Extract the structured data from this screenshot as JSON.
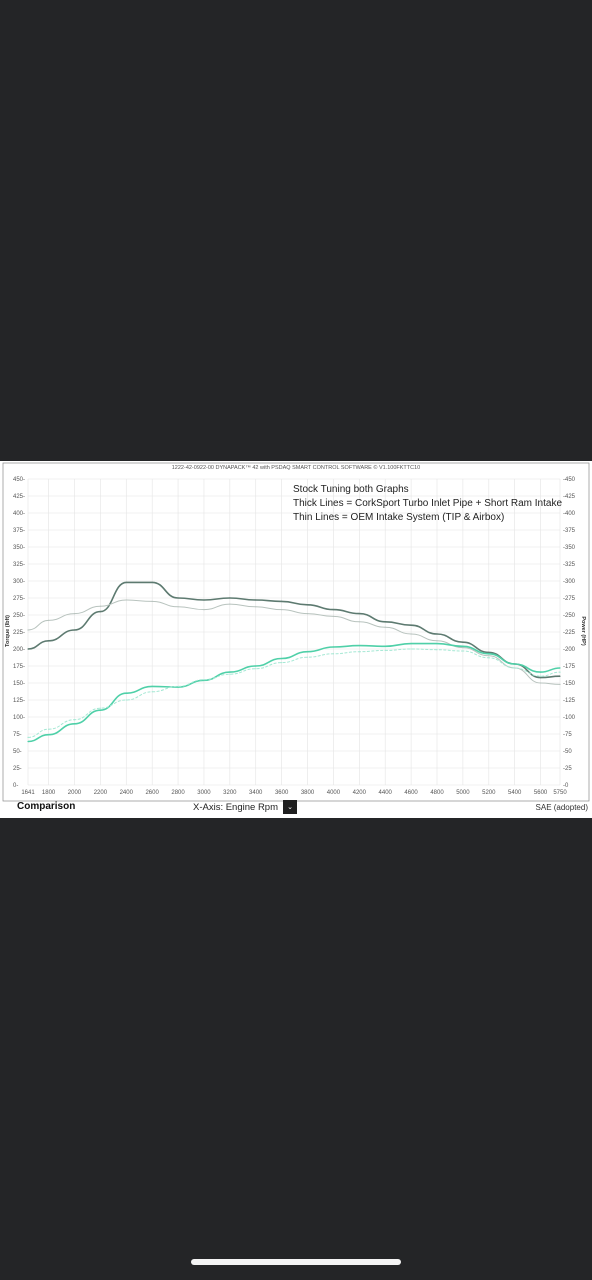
{
  "header_text": "1222-42-0922-00 DYNAPACK™ 42 with PSDAQ SMART CONTROL SOFTWARE © V1.100FKTTC10",
  "footer": {
    "left_label": "Comparison",
    "x_axis_selector": "X-Axis: Engine Rpm",
    "right_label": "SAE (adopted)"
  },
  "colors": {
    "torque_thick": "#5d7a70",
    "torque_thin": "#b8c3be",
    "power_thick": "#4fd0a8",
    "power_thin": "#a5e8d4",
    "background": "#242527"
  },
  "chart_data": {
    "type": "line",
    "annotations": [
      "Stock Tuning both Graphs",
      "Thick Lines = CorkSport Turbo Inlet Pipe + Short Ram Intake",
      "Thin Lines = OEM Intake System (TIP & Airbox)"
    ],
    "xlabel": "",
    "ylabel_left": "Torque (lbft)",
    "ylabel_right": "Power (HP)",
    "x_ticks": [
      "1641",
      "1800",
      "2000",
      "2200",
      "2400",
      "2600",
      "2800",
      "3000",
      "3200",
      "3400",
      "3600",
      "3800",
      "4000",
      "4200",
      "4400",
      "4600",
      "4800",
      "5000",
      "5200",
      "5400",
      "5600",
      "5750"
    ],
    "y_ticks_left": [
      "450",
      "425",
      "400",
      "375",
      "350",
      "325",
      "300",
      "275",
      "250",
      "225",
      "200",
      "175",
      "150",
      "125",
      "100",
      "75",
      "50",
      "25",
      "0"
    ],
    "y_ticks_right": [
      "450",
      "425",
      "400",
      "375",
      "350",
      "325",
      "300",
      "275",
      "250",
      "225",
      "200",
      "175",
      "150",
      "125",
      "100",
      "75",
      "50",
      "25",
      "0"
    ],
    "ylim": [
      0,
      450
    ],
    "x": [
      1641,
      1800,
      2000,
      2200,
      2400,
      2600,
      2800,
      3000,
      3200,
      3400,
      3600,
      3800,
      4000,
      4200,
      4400,
      4600,
      4800,
      5000,
      5200,
      5400,
      5600,
      5750
    ],
    "series": [
      {
        "key": "torque_thick",
        "axis": "left",
        "width": 1.6,
        "dash": "",
        "values": [
          200,
          212,
          228,
          255,
          298,
          298,
          275,
          272,
          275,
          272,
          270,
          265,
          258,
          252,
          240,
          235,
          222,
          210,
          195,
          178,
          158,
          160
        ]
      },
      {
        "key": "torque_thin",
        "axis": "left",
        "width": 1.0,
        "dash": "",
        "values": [
          228,
          242,
          252,
          263,
          272,
          270,
          262,
          258,
          266,
          262,
          258,
          252,
          248,
          240,
          232,
          222,
          212,
          202,
          190,
          172,
          150,
          148
        ]
      },
      {
        "key": "power_thick",
        "axis": "right",
        "width": 1.6,
        "dash": "",
        "values": [
          64,
          74,
          90,
          110,
          135,
          145,
          144,
          154,
          166,
          175,
          186,
          196,
          203,
          205,
          204,
          208,
          208,
          204,
          193,
          178,
          166,
          172
        ]
      },
      {
        "key": "power_thin",
        "axis": "right",
        "width": 1.0,
        "dash": "3,1.5",
        "values": [
          70,
          82,
          96,
          113,
          125,
          137,
          145,
          155,
          163,
          171,
          180,
          188,
          193,
          196,
          198,
          200,
          199,
          197,
          187,
          172,
          160,
          166
        ]
      }
    ]
  }
}
